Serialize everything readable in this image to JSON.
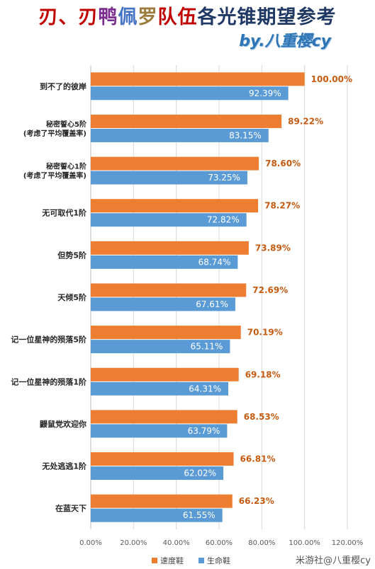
{
  "title_segments": [
    {
      "text": "刃、刃",
      "color": "#c00000"
    },
    {
      "text": "鸭",
      "color": "#7b2c8f"
    },
    {
      "text": "佩",
      "color": "#4472c4"
    },
    {
      "text": "罗",
      "color": "#9c7c3c"
    },
    {
      "text": "队伍",
      "color": "#c00000"
    },
    {
      "text": "各光锥期望参考",
      "color": "#203864"
    }
  ],
  "subtitle": "by.八重樱cy",
  "watermark": "米游社@八重樱cy",
  "chart_data": {
    "type": "bar",
    "orientation": "horizontal",
    "categories": [
      "到不了的彼岸",
      "秘密誓心5阶\n(考虑了平均覆盖率)",
      "秘密誓心1阶\n(考虑了平均覆盖率)",
      "无可取代1阶",
      "但势5阶",
      "天倾5阶",
      "记一位星神的殒落5阶",
      "记一位星神的殒落1阶",
      "鼹鼠党欢迎你",
      "无处逃逃1阶",
      "在蓝天下"
    ],
    "series": [
      {
        "name": "速度鞋",
        "color": "#ed7d31",
        "label_color": "#c55a11",
        "values": [
          100.0,
          89.22,
          78.6,
          78.27,
          73.89,
          72.69,
          70.19,
          69.18,
          68.53,
          66.81,
          66.23
        ]
      },
      {
        "name": "生命鞋",
        "color": "#5b9bd5",
        "label_color": "#ffffff",
        "values": [
          92.39,
          83.15,
          73.25,
          72.82,
          68.74,
          67.61,
          65.11,
          64.31,
          63.79,
          62.02,
          61.55
        ]
      }
    ],
    "xlim": [
      0,
      120
    ],
    "xticks": [
      0,
      20,
      40,
      60,
      80,
      100,
      120
    ],
    "xtick_labels": [
      "0.00%",
      "20.00%",
      "40.00%",
      "60.00%",
      "80.00%",
      "100.00%",
      "120.00%"
    ],
    "value_suffix": "%",
    "grid": "vertical",
    "legend_position": "bottom"
  }
}
